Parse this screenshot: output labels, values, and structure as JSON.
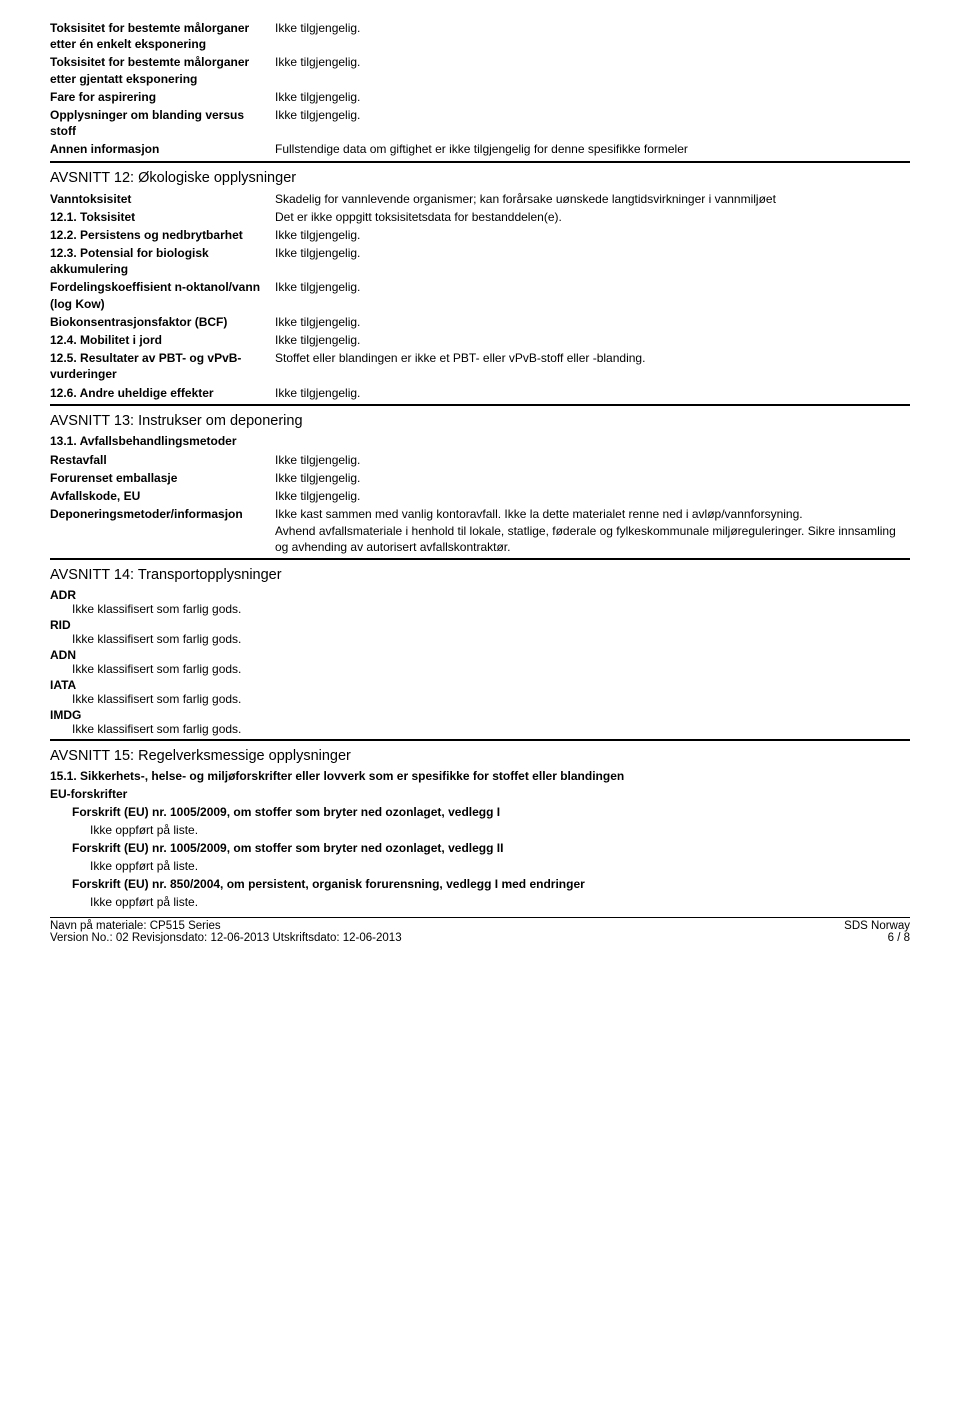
{
  "top": {
    "r1l": "Toksisitet for bestemte målorganer etter én enkelt eksponering",
    "r1v": "Ikke tilgjengelig.",
    "r2l": "Toksisitet for bestemte målorganer etter gjentatt eksponering",
    "r2v": "Ikke tilgjengelig.",
    "r3l": "Fare for aspirering",
    "r3v": "Ikke tilgjengelig.",
    "r4l": "Opplysninger om blanding versus stoff",
    "r4v": "Ikke tilgjengelig.",
    "r5l": "Annen informasjon",
    "r5v": "Fullstendige data om giftighet er ikke tilgjengelig for denne spesifikke formeler"
  },
  "s12": {
    "title": "AVSNITT 12: Økologiske opplysninger",
    "r1l": "Vanntoksisitet",
    "r1v": "Skadelig for vannlevende organismer; kan forårsake uønskede langtidsvirkninger i vannmiljøet",
    "r2l": "12.1. Toksisitet",
    "r2v": "Det er ikke oppgitt toksisitetsdata for bestanddelen(e).",
    "r3l": "12.2. Persistens og nedbrytbarhet",
    "r3v": "Ikke tilgjengelig.",
    "r4l": "12.3. Potensial for biologisk akkumulering",
    "r4v": "Ikke tilgjengelig.",
    "r5l": "Fordelingskoeffisient n-oktanol/vann (log Kow)",
    "r5v": "Ikke tilgjengelig.",
    "r6l": "Biokonsentrasjonsfaktor (BCF)",
    "r6v": "Ikke tilgjengelig.",
    "r7l": "12.4. Mobilitet i jord",
    "r7v": "Ikke tilgjengelig.",
    "r8l": "12.5. Resultater av PBT- og vPvB-vurderinger",
    "r8v": "Stoffet eller blandingen er ikke et PBT- eller vPvB-stoff eller -blanding.",
    "r9l": "12.6. Andre uheldige effekter",
    "r9v": "Ikke tilgjengelig."
  },
  "s13": {
    "title": "AVSNITT 13: Instrukser om deponering",
    "sub1": "13.1. Avfallsbehandlingsmetoder",
    "r1l": "Restavfall",
    "r1v": "Ikke tilgjengelig.",
    "r2l": "Forurenset emballasje",
    "r2v": "Ikke tilgjengelig.",
    "r3l": "Avfallskode, EU",
    "r3v": "Ikke tilgjengelig.",
    "r4l": "Deponeringsmetoder/informasjon",
    "r4v": "Ikke kast sammen med vanlig kontoravfall. Ikke la dette materialet renne ned i avløp/vannforsyning.\nAvhend avfallsmateriale i henhold til lokale, statlige, føderale og fylkeskommunale miljøreguleringer. Sikre innsamling og avhending av autorisert avfallskontraktør."
  },
  "s14": {
    "title": "AVSNITT 14: Transportopplysninger",
    "i1l": "ADR",
    "i1v": "Ikke klassifisert som farlig gods.",
    "i2l": "RID",
    "i2v": "Ikke klassifisert som farlig gods.",
    "i3l": "ADN",
    "i3v": "Ikke klassifisert som farlig gods.",
    "i4l": "IATA",
    "i4v": "Ikke klassifisert som farlig gods.",
    "i5l": "IMDG",
    "i5v": "Ikke klassifisert som farlig gods."
  },
  "s15": {
    "title": "AVSNITT 15: Regelverksmessige opplysninger",
    "sub1": "15.1. Sikkerhets-, helse- og miljøforskrifter eller lovverk som er spesifikke for stoffet eller blandingen",
    "eu": "EU-forskrifter",
    "f1": "Forskrift (EU) nr. 1005/2009, om stoffer som bryter ned ozonlaget, vedlegg I",
    "f1v": "Ikke oppført på liste.",
    "f2": "Forskrift (EU) nr. 1005/2009, om stoffer som bryter ned ozonlaget, vedlegg II",
    "f2v": "Ikke oppført på liste.",
    "f3": "Forskrift (EU) nr. 850/2004, om persistent, organisk forurensning, vedlegg I med endringer",
    "f3v": "Ikke oppført på liste."
  },
  "footer": {
    "line1l": "Navn på materiale: CP515 Series",
    "line1r": "SDS Norway",
    "line2l": "Version No.: 02    Revisjonsdato: 12-06-2013    Utskriftsdato: 12-06-2013",
    "line2r": "6 / 8"
  }
}
